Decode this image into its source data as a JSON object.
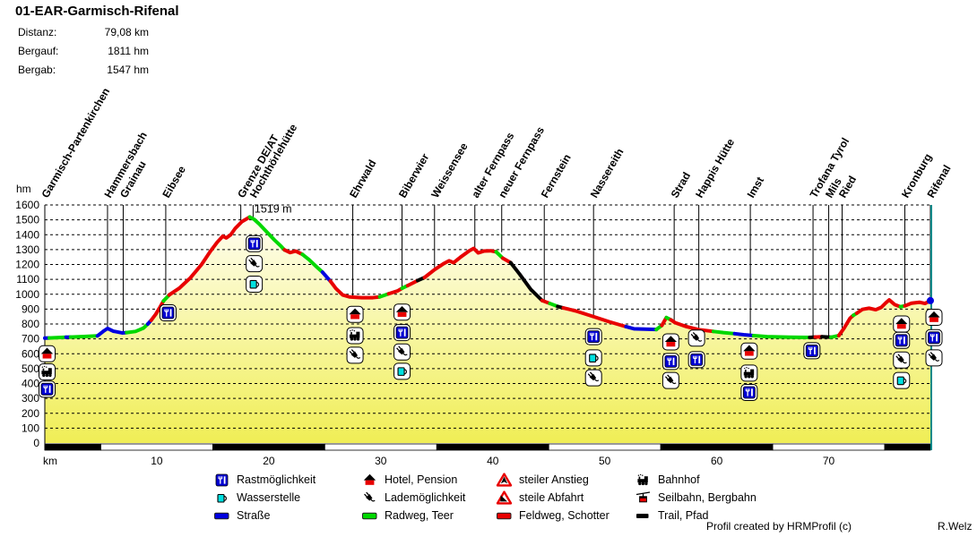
{
  "header": {
    "title": "01-EAR-Garmisch-Rifenal",
    "stats": [
      {
        "label": "Distanz:",
        "value": "79,08 km"
      },
      {
        "label": "Bergauf:",
        "value": "1811 hm"
      },
      {
        "label": "Bergab:",
        "value": "1547 hm"
      }
    ]
  },
  "chart_data": {
    "type": "area",
    "title": "01-EAR-Garmisch-Rifenal",
    "grid": true,
    "legend_position": "bottom",
    "y_axis": {
      "label": "hm",
      "min": 0,
      "max": 1600,
      "step": 100
    },
    "x_axis": {
      "label": "km",
      "ticks": [
        10,
        20,
        30,
        40,
        50,
        60,
        70
      ],
      "max_km": 79.08
    },
    "peak_annotation": {
      "text": "1519 m",
      "km": 18.4,
      "hm": 1519
    },
    "surface_colors": {
      "strasse": "#0000e0",
      "radweg": "#00d800",
      "feldweg": "#e80000",
      "trail": "#000000"
    },
    "fill_top_color": "#fffef2",
    "fill_bottom_color": "#f0ee55",
    "border_right_color": "#008a8a",
    "segments": [
      {
        "surface": "strasse",
        "points": [
          [
            0,
            705
          ],
          [
            0.4,
            706
          ]
        ]
      },
      {
        "surface": "radweg",
        "points": [
          [
            0.4,
            706
          ],
          [
            1.9,
            711
          ]
        ]
      },
      {
        "surface": "strasse",
        "points": [
          [
            1.9,
            711
          ],
          [
            2.3,
            712
          ]
        ]
      },
      {
        "surface": "radweg",
        "points": [
          [
            2.3,
            712
          ],
          [
            3.5,
            716
          ],
          [
            4.7,
            720
          ]
        ]
      },
      {
        "surface": "strasse",
        "points": [
          [
            4.7,
            720
          ],
          [
            5.3,
            755
          ],
          [
            5.6,
            770
          ],
          [
            6.1,
            752
          ],
          [
            6.9,
            740
          ],
          [
            7.3,
            742
          ]
        ]
      },
      {
        "surface": "radweg",
        "points": [
          [
            7.3,
            742
          ],
          [
            8.1,
            750
          ],
          [
            8.8,
            772
          ],
          [
            9.2,
            800
          ]
        ]
      },
      {
        "surface": "strasse",
        "points": [
          [
            9.2,
            800
          ],
          [
            9.5,
            825
          ]
        ]
      },
      {
        "surface": "feldweg",
        "points": [
          [
            9.5,
            825
          ],
          [
            9.9,
            865
          ],
          [
            10.3,
            915
          ],
          [
            10.6,
            955
          ]
        ]
      },
      {
        "surface": "radweg",
        "points": [
          [
            10.6,
            955
          ],
          [
            11.1,
            995
          ]
        ]
      },
      {
        "surface": "feldweg",
        "points": [
          [
            11.1,
            995
          ],
          [
            12,
            1040
          ],
          [
            13,
            1110
          ],
          [
            14,
            1200
          ],
          [
            14.8,
            1290
          ],
          [
            15.4,
            1350
          ],
          [
            15.9,
            1390
          ],
          [
            16.2,
            1378
          ],
          [
            16.6,
            1400
          ],
          [
            17,
            1442
          ],
          [
            17.6,
            1488
          ],
          [
            18.3,
            1519
          ]
        ]
      },
      {
        "surface": "radweg",
        "points": [
          [
            18.3,
            1519
          ],
          [
            18.7,
            1503
          ],
          [
            19.2,
            1468
          ],
          [
            19.8,
            1420
          ],
          [
            20.5,
            1365
          ],
          [
            21.1,
            1322
          ],
          [
            21.4,
            1298
          ]
        ]
      },
      {
        "surface": "feldweg",
        "points": [
          [
            21.4,
            1298
          ],
          [
            21.9,
            1280
          ],
          [
            22.4,
            1290
          ],
          [
            23,
            1268
          ]
        ]
      },
      {
        "surface": "radweg",
        "points": [
          [
            23,
            1268
          ],
          [
            23.6,
            1232
          ],
          [
            24.3,
            1182
          ],
          [
            24.8,
            1148
          ]
        ]
      },
      {
        "surface": "strasse",
        "points": [
          [
            24.8,
            1148
          ],
          [
            25.5,
            1088
          ]
        ]
      },
      {
        "surface": "feldweg",
        "points": [
          [
            25.5,
            1088
          ],
          [
            26,
            1038
          ],
          [
            26.6,
            995
          ],
          [
            27.2,
            982
          ],
          [
            28.3,
            977
          ],
          [
            29.3,
            977
          ],
          [
            29.9,
            982
          ]
        ]
      },
      {
        "surface": "radweg",
        "points": [
          [
            29.9,
            982
          ],
          [
            30.7,
            1003
          ]
        ]
      },
      {
        "surface": "feldweg",
        "points": [
          [
            30.7,
            1003
          ],
          [
            31.5,
            1022
          ],
          [
            31.9,
            1040
          ]
        ]
      },
      {
        "surface": "radweg",
        "points": [
          [
            31.9,
            1040
          ],
          [
            32.4,
            1058
          ]
        ]
      },
      {
        "surface": "feldweg",
        "points": [
          [
            32.4,
            1058
          ],
          [
            33.3,
            1092
          ]
        ]
      },
      {
        "surface": "trail",
        "points": [
          [
            33.3,
            1092
          ],
          [
            33.9,
            1112
          ]
        ]
      },
      {
        "surface": "feldweg",
        "points": [
          [
            33.9,
            1112
          ],
          [
            34.8,
            1165
          ],
          [
            35.6,
            1205
          ],
          [
            36.1,
            1225
          ],
          [
            36.5,
            1212
          ],
          [
            37.1,
            1248
          ],
          [
            37.9,
            1292
          ],
          [
            38.3,
            1308
          ],
          [
            38.7,
            1278
          ],
          [
            39.2,
            1290
          ],
          [
            39.8,
            1292
          ],
          [
            40.3,
            1285
          ]
        ]
      },
      {
        "surface": "radweg",
        "points": [
          [
            40.3,
            1285
          ],
          [
            40.9,
            1242
          ]
        ]
      },
      {
        "surface": "feldweg",
        "points": [
          [
            40.9,
            1242
          ],
          [
            41.6,
            1212
          ]
        ]
      },
      {
        "surface": "trail",
        "points": [
          [
            41.6,
            1212
          ],
          [
            42.4,
            1135
          ],
          [
            43.4,
            1032
          ],
          [
            44.4,
            958
          ]
        ]
      },
      {
        "surface": "feldweg",
        "points": [
          [
            44.4,
            958
          ],
          [
            45.1,
            938
          ]
        ]
      },
      {
        "surface": "radweg",
        "points": [
          [
            45.1,
            938
          ],
          [
            45.8,
            918
          ]
        ]
      },
      {
        "surface": "trail",
        "points": [
          [
            45.8,
            918
          ],
          [
            46.3,
            908
          ]
        ]
      },
      {
        "surface": "feldweg",
        "points": [
          [
            46.3,
            908
          ],
          [
            47.4,
            888
          ],
          [
            48.9,
            852
          ],
          [
            50.4,
            815
          ],
          [
            51.9,
            782
          ]
        ]
      },
      {
        "surface": "strasse",
        "points": [
          [
            51.9,
            782
          ],
          [
            52.6,
            768
          ],
          [
            54.6,
            763
          ]
        ]
      },
      {
        "surface": "radweg",
        "points": [
          [
            54.6,
            763
          ],
          [
            55.1,
            790
          ]
        ]
      },
      {
        "surface": "feldweg",
        "points": [
          [
            55.1,
            790
          ],
          [
            55.5,
            843
          ]
        ]
      },
      {
        "surface": "radweg",
        "points": [
          [
            55.5,
            843
          ],
          [
            55.9,
            828
          ]
        ]
      },
      {
        "surface": "feldweg",
        "points": [
          [
            55.9,
            828
          ],
          [
            56.3,
            808
          ],
          [
            57.3,
            782
          ],
          [
            58.4,
            762
          ],
          [
            59.7,
            750
          ]
        ]
      },
      {
        "surface": "radweg",
        "points": [
          [
            59.7,
            750
          ],
          [
            60.6,
            742
          ],
          [
            61.6,
            735
          ]
        ]
      },
      {
        "surface": "strasse",
        "points": [
          [
            61.6,
            735
          ],
          [
            62.4,
            728
          ],
          [
            63.3,
            722
          ]
        ]
      },
      {
        "surface": "radweg",
        "points": [
          [
            63.3,
            722
          ],
          [
            64.5,
            715
          ],
          [
            66.5,
            711
          ],
          [
            68.3,
            710
          ]
        ]
      },
      {
        "surface": "trail",
        "points": [
          [
            68.3,
            710
          ],
          [
            68.8,
            712
          ]
        ]
      },
      {
        "surface": "feldweg",
        "points": [
          [
            68.8,
            712
          ],
          [
            69.4,
            714
          ]
        ]
      },
      {
        "surface": "trail",
        "points": [
          [
            69.4,
            714
          ],
          [
            70.2,
            711
          ]
        ]
      },
      {
        "surface": "radweg",
        "points": [
          [
            70.2,
            711
          ],
          [
            70.9,
            722
          ]
        ]
      },
      {
        "surface": "feldweg",
        "points": [
          [
            70.9,
            722
          ],
          [
            71.4,
            775
          ],
          [
            71.9,
            838
          ],
          [
            72.2,
            858
          ]
        ]
      },
      {
        "surface": "radweg",
        "points": [
          [
            72.2,
            858
          ],
          [
            72.5,
            872
          ]
        ]
      },
      {
        "surface": "feldweg",
        "points": [
          [
            72.5,
            872
          ],
          [
            73,
            898
          ],
          [
            73.6,
            906
          ],
          [
            74.2,
            896
          ],
          [
            74.7,
            912
          ],
          [
            75.1,
            942
          ],
          [
            75.4,
            962
          ],
          [
            75.9,
            930
          ],
          [
            76.4,
            916
          ]
        ]
      },
      {
        "surface": "radweg",
        "points": [
          [
            76.4,
            916
          ],
          [
            76.8,
            922
          ]
        ]
      },
      {
        "surface": "feldweg",
        "points": [
          [
            76.8,
            922
          ],
          [
            77.4,
            940
          ],
          [
            78.1,
            946
          ],
          [
            78.6,
            938
          ],
          [
            79.08,
            957
          ]
        ]
      }
    ],
    "end_marker": {
      "km": 79.08,
      "hm": 957
    },
    "locations": [
      {
        "name": "Garmisch-Partenkirchen",
        "km": 0,
        "hm": 705
      },
      {
        "name": "Hammersbach",
        "km": 5.6,
        "hm": 768
      },
      {
        "name": "Grainau",
        "km": 7.0,
        "hm": 742
      },
      {
        "name": "Eibsee",
        "km": 10.8,
        "hm": 1000
      },
      {
        "name": "Grenze DE/AT",
        "km": 17.5,
        "hm": 1478
      },
      {
        "name": "Hochthörlehütte",
        "km": 18.6,
        "hm": 1510
      },
      {
        "name": "Ehrwald",
        "km": 27.5,
        "hm": 980
      },
      {
        "name": "Biberwier",
        "km": 31.9,
        "hm": 1035
      },
      {
        "name": "Weissensee",
        "km": 34.8,
        "hm": 1180
      },
      {
        "name": "alter Fernpass",
        "km": 38.4,
        "hm": 1300
      },
      {
        "name": "neuer Fernpass",
        "km": 40.8,
        "hm": 1283
      },
      {
        "name": "Fernstein",
        "km": 44.6,
        "hm": 958
      },
      {
        "name": "Nassereith",
        "km": 49.0,
        "hm": 852
      },
      {
        "name": "Strad",
        "km": 56.2,
        "hm": 808
      },
      {
        "name": "Happis Hütte",
        "km": 58.4,
        "hm": 762
      },
      {
        "name": "Imst",
        "km": 63.0,
        "hm": 718
      },
      {
        "name": "Trofana Tyrol",
        "km": 68.6,
        "hm": 712
      },
      {
        "name": "Mils",
        "km": 70.0,
        "hm": 712
      },
      {
        "name": "Ried",
        "km": 71.2,
        "hm": 725
      },
      {
        "name": "Kronburg",
        "km": 76.8,
        "hm": 932
      },
      {
        "name": "Rifenal",
        "km": 79.08,
        "hm": 958
      }
    ],
    "markers": [
      {
        "type": "hotel",
        "km": 0.2,
        "hm": 600
      },
      {
        "type": "bahnhof",
        "km": 0.2,
        "hm": 478
      },
      {
        "type": "rast",
        "km": 0.2,
        "hm": 362
      },
      {
        "type": "rast",
        "km": 11.0,
        "hm": 875
      },
      {
        "type": "rast",
        "km": 18.7,
        "hm": 1340
      },
      {
        "type": "lade",
        "km": 18.7,
        "hm": 1205
      },
      {
        "type": "wasser",
        "km": 18.7,
        "hm": 1068
      },
      {
        "type": "hotel",
        "km": 27.7,
        "hm": 865
      },
      {
        "type": "bahnhof",
        "km": 27.7,
        "hm": 722
      },
      {
        "type": "lade",
        "km": 27.7,
        "hm": 590
      },
      {
        "type": "hotel",
        "km": 31.9,
        "hm": 880
      },
      {
        "type": "rast",
        "km": 31.9,
        "hm": 742
      },
      {
        "type": "lade",
        "km": 31.9,
        "hm": 612
      },
      {
        "type": "wasser",
        "km": 31.9,
        "hm": 482
      },
      {
        "type": "rast",
        "km": 49.0,
        "hm": 715
      },
      {
        "type": "wasser",
        "km": 49.0,
        "hm": 572
      },
      {
        "type": "lade",
        "km": 49.0,
        "hm": 438
      },
      {
        "type": "hotel",
        "km": 55.9,
        "hm": 680
      },
      {
        "type": "rast",
        "km": 55.9,
        "hm": 548
      },
      {
        "type": "lade",
        "km": 55.9,
        "hm": 420
      },
      {
        "type": "lade",
        "km": 58.2,
        "hm": 705
      },
      {
        "type": "rast",
        "km": 58.2,
        "hm": 560
      },
      {
        "type": "hotel",
        "km": 62.9,
        "hm": 618
      },
      {
        "type": "bahnhof",
        "km": 62.9,
        "hm": 470
      },
      {
        "type": "rast",
        "km": 62.9,
        "hm": 340
      },
      {
        "type": "rast",
        "km": 68.5,
        "hm": 620
      },
      {
        "type": "hotel",
        "km": 76.5,
        "hm": 800
      },
      {
        "type": "rast",
        "km": 76.5,
        "hm": 690
      },
      {
        "type": "lade",
        "km": 76.5,
        "hm": 558
      },
      {
        "type": "wasser",
        "km": 76.5,
        "hm": 420
      },
      {
        "type": "hotel",
        "km": 79.4,
        "hm": 845
      },
      {
        "type": "rast",
        "km": 79.4,
        "hm": 708
      },
      {
        "type": "lade",
        "km": 79.4,
        "hm": 572
      }
    ]
  },
  "legend": {
    "columns": [
      [
        {
          "icon": "rast",
          "label": "Rastmöglichkeit"
        },
        {
          "icon": "wasser",
          "label": "Wasserstelle"
        },
        {
          "icon": "strasse",
          "label": "Straße"
        }
      ],
      [
        {
          "icon": "hotel",
          "label": "Hotel, Pension"
        },
        {
          "icon": "lade",
          "label": "Lademöglichkeit"
        },
        {
          "icon": "radweg",
          "label": "Radweg, Teer"
        }
      ],
      [
        {
          "icon": "anstieg",
          "label": "steiler Anstieg"
        },
        {
          "icon": "abfahrt",
          "label": "steile Abfahrt"
        },
        {
          "icon": "feldweg",
          "label": "Feldweg, Schotter"
        }
      ],
      [
        {
          "icon": "bahnhof",
          "label": "Bahnhof"
        },
        {
          "icon": "seilbahn",
          "label": "Seilbahn, Bergbahn"
        },
        {
          "icon": "trail",
          "label": "Trail, Pfad"
        }
      ]
    ]
  },
  "footer": {
    "credit": "Profil created by HRMProfil (c)",
    "author": "R.Welz"
  }
}
